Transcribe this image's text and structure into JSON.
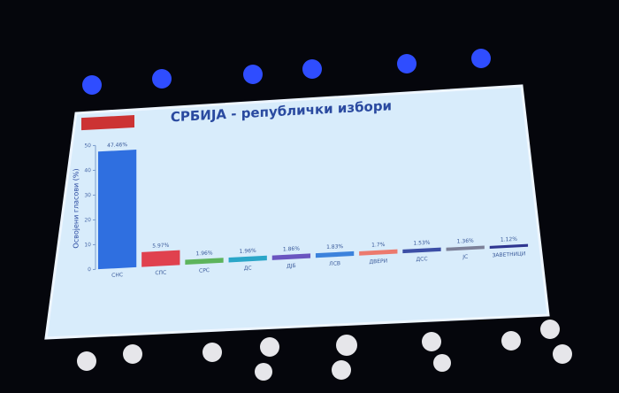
{
  "chart_data": {
    "type": "bar",
    "title": "СРБИЈА - републички избори",
    "y_label": "Освојени гласови (%)",
    "categories": [
      "СНС",
      "СПС",
      "СРС",
      "ДС",
      "ДЈБ",
      "ЛСВ",
      "ДВЕРИ",
      "ДСС",
      "ЈС",
      "ЗАВЕТНИЦИ"
    ],
    "values": [
      47.46,
      5.97,
      1.96,
      1.96,
      1.86,
      1.83,
      1.7,
      1.53,
      1.36,
      1.12
    ],
    "value_labels": [
      "47.46%",
      "5.97%",
      "1.96%",
      "1.96%",
      "1.86%",
      "1.83%",
      "1.7%",
      "1.53%",
      "1.36%",
      "1.12%"
    ],
    "colors": [
      "#2f6fe0",
      "#e0414e",
      "#5db45c",
      "#2aa6c8",
      "#6a55c0",
      "#3b82dc",
      "#ec7a6e",
      "#3c4fa6",
      "#7c8098",
      "#2e3590"
    ],
    "ylim": [
      0,
      50
    ],
    "yticks": [
      0,
      10,
      20,
      30,
      40,
      50
    ],
    "grid": false
  }
}
